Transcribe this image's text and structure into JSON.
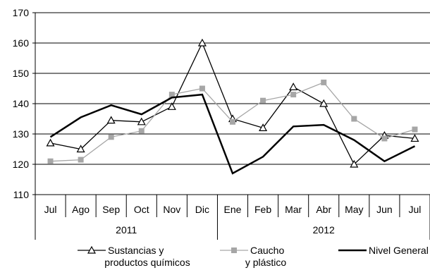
{
  "chart_data": {
    "type": "line",
    "title": "",
    "xlabel": "",
    "ylabel": "",
    "ylim": [
      110,
      170
    ],
    "yticks": [
      110,
      120,
      130,
      140,
      150,
      160,
      170
    ],
    "grid": "horizontal",
    "legend_position": "bottom",
    "categories": [
      "Jul",
      "Ago",
      "Sep",
      "Oct",
      "Nov",
      "Dic",
      "Ene",
      "Feb",
      "Mar",
      "Abr",
      "May",
      "Jun",
      "Jul"
    ],
    "groups": [
      {
        "label": "2011",
        "start": 0,
        "end": 5
      },
      {
        "label": "2012",
        "start": 6,
        "end": 12
      }
    ],
    "series": [
      {
        "name_lines": [
          "Sustancias y",
          "productos químicos"
        ],
        "color": "#000000",
        "marker": "triangle-open",
        "values": [
          127,
          125,
          134.5,
          134,
          139,
          160,
          135,
          132,
          145.5,
          140,
          120,
          129.5,
          128.5
        ]
      },
      {
        "name_lines": [
          "Caucho",
          "y plástico"
        ],
        "color": "#a6a6a6",
        "marker": "square-filled",
        "values": [
          121,
          121.5,
          129,
          131,
          143,
          145,
          134,
          141,
          143,
          147,
          135,
          128.5,
          131.5
        ]
      },
      {
        "name_lines": [
          "Nivel General"
        ],
        "color": "#000000",
        "marker": "none",
        "values": [
          129,
          135.5,
          139.5,
          136.5,
          142,
          143,
          117,
          122.5,
          132.5,
          133,
          128,
          121,
          126
        ]
      }
    ]
  }
}
